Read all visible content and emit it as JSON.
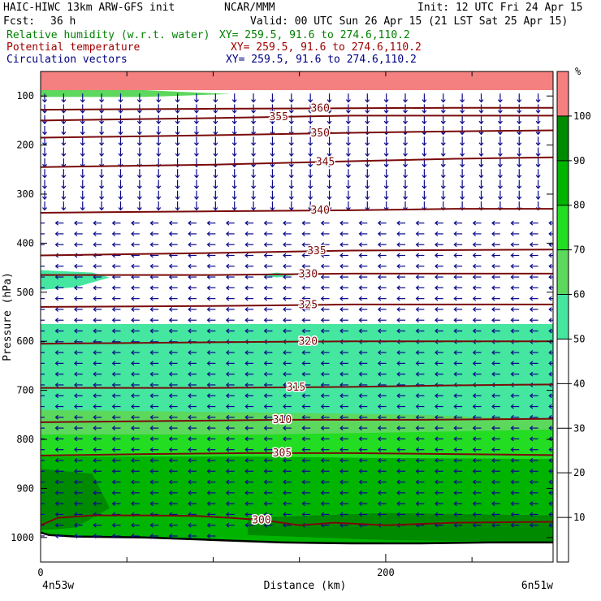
{
  "header": {
    "model": "HAIC-HIWC 13km ARW-GFS init",
    "org": "NCAR/MMM",
    "init": "Init: 12 UTC Fri 24 Apr 15",
    "fcst_label": "Fcst:",
    "fcst_value": "36 h",
    "valid": "Valid: 00 UTC Sun 26 Apr 15 (21 LST Sat 25 Apr 15)",
    "fields": [
      {
        "name": "Relative humidity (w.r.t. water)",
        "xy": "XY= 259.5, 91.6 to 274.6,110.2",
        "color": "#008000"
      },
      {
        "name": "Potential temperature",
        "xy": "XY= 259.5, 91.6 to 274.6,110.2",
        "color": "#a00000"
      },
      {
        "name": "Circulation vectors",
        "xy": "XY= 259.5, 91.6 to 274.6,110.2",
        "color": "#000080"
      }
    ]
  },
  "chart_data": {
    "type": "heatmap",
    "title": "",
    "xlabel": "Distance (km)",
    "ylabel": "Pressure (hPa)",
    "x_ticks": [
      0,
      200
    ],
    "x_range": [
      0,
      297
    ],
    "x_endpoints": {
      "left": "4n53w",
      "right": "6n51w"
    },
    "y_ticks": [
      100,
      200,
      300,
      400,
      500,
      600,
      700,
      800,
      900,
      1000
    ],
    "y_range": [
      50,
      1050
    ],
    "colorbar": {
      "unit": "%",
      "ticks": [
        10,
        20,
        30,
        40,
        50,
        60,
        70,
        80,
        90,
        100
      ],
      "bands": [
        {
          "from": 50,
          "to": 60,
          "color": "#44e6a0"
        },
        {
          "from": 60,
          "to": 70,
          "color": "#5cd85c"
        },
        {
          "from": 70,
          "to": 80,
          "color": "#22dd22"
        },
        {
          "from": 80,
          "to": 90,
          "color": "#00b400"
        },
        {
          "from": 90,
          "to": 100,
          "color": "#008a00"
        },
        {
          "from": 100,
          "to": 110,
          "color": "#f58080"
        }
      ]
    },
    "rh_regions": [
      {
        "level": 100,
        "x": [
          0,
          297,
          297,
          0
        ],
        "p": [
          50,
          50,
          88,
          88
        ]
      },
      {
        "level": 60,
        "x": [
          0,
          60,
          110,
          60,
          0
        ],
        "p": [
          88,
          88,
          96,
          102,
          102
        ]
      },
      {
        "level": 50,
        "x": [
          0,
          297,
          297,
          260,
          230,
          200,
          180,
          160,
          100,
          60,
          20,
          0
        ],
        "p": [
          565,
          565,
          1050,
          1050,
          1040,
          1035,
          1030,
          1028,
          1020,
          1015,
          1010,
          1010
        ]
      },
      {
        "level": 50,
        "x": [
          0,
          30,
          40,
          20,
          0
        ],
        "p": [
          455,
          460,
          470,
          490,
          495
        ]
      },
      {
        "level": 50,
        "x": [
          127,
          137,
          147,
          137,
          127
        ],
        "p": [
          465,
          460,
          465,
          470,
          465
        ]
      },
      {
        "level": 60,
        "x": [
          0,
          120,
          220,
          297,
          297,
          0
        ],
        "p": [
          740,
          745,
          750,
          760,
          1050,
          1050
        ]
      },
      {
        "level": 70,
        "x": [
          0,
          130,
          220,
          297,
          297,
          0
        ],
        "p": [
          790,
          790,
          785,
          780,
          1050,
          1050
        ]
      },
      {
        "level": 80,
        "x": [
          0,
          120,
          200,
          297,
          297,
          0
        ],
        "p": [
          835,
          835,
          838,
          840,
          1050,
          1050
        ]
      },
      {
        "level": 90,
        "x": [
          0,
          30,
          40,
          20,
          0
        ],
        "p": [
          860,
          870,
          940,
          980,
          985
        ]
      },
      {
        "level": 90,
        "x": [
          120,
          200,
          297,
          297,
          200,
          120
        ],
        "p": [
          960,
          950,
          955,
          1010,
          1005,
          995
        ]
      }
    ],
    "theta_contours": [
      {
        "label": 300,
        "x": [
          0,
          10,
          30,
          60,
          90,
          110,
          130,
          150,
          170,
          200,
          240,
          297
        ],
        "p": [
          975,
          960,
          955,
          955,
          956,
          960,
          965,
          975,
          970,
          975,
          970,
          968
        ]
      },
      {
        "label": 305,
        "x": [
          0,
          60,
          120,
          180,
          240,
          297
        ],
        "p": [
          833,
          830,
          828,
          828,
          830,
          832
        ]
      },
      {
        "label": 310,
        "x": [
          0,
          60,
          140,
          220,
          297
        ],
        "p": [
          765,
          763,
          760,
          760,
          758
        ]
      },
      {
        "label": 315,
        "x": [
          0,
          100,
          180,
          240,
          297
        ],
        "p": [
          695,
          695,
          693,
          690,
          688
        ]
      },
      {
        "label": 320,
        "x": [
          0,
          100,
          180,
          240,
          297
        ],
        "p": [
          605,
          602,
          600,
          600,
          600
        ]
      },
      {
        "label": 325,
        "x": [
          0,
          100,
          180,
          240,
          297
        ],
        "p": [
          530,
          528,
          525,
          525,
          525
        ]
      },
      {
        "label": 330,
        "x": [
          0,
          100,
          180,
          240,
          297
        ],
        "p": [
          465,
          465,
          462,
          462,
          462
        ]
      },
      {
        "label": 335,
        "x": [
          0,
          100,
          180,
          240,
          297
        ],
        "p": [
          425,
          420,
          415,
          414,
          413
        ]
      },
      {
        "label": 340,
        "x": [
          0,
          100,
          180,
          240,
          297
        ],
        "p": [
          338,
          335,
          333,
          330,
          330
        ]
      },
      {
        "label": 345,
        "x": [
          0,
          100,
          180,
          240,
          297
        ],
        "p": [
          245,
          240,
          233,
          228,
          225
        ]
      },
      {
        "label": 350,
        "x": [
          0,
          100,
          180,
          240,
          297
        ],
        "p": [
          185,
          180,
          175,
          172,
          170
        ]
      },
      {
        "label": 355,
        "x": [
          0,
          100,
          180,
          240,
          297
        ],
        "p": [
          150,
          145,
          140,
          140,
          140
        ]
      },
      {
        "label": 360,
        "x": [
          0,
          100,
          180,
          240,
          297
        ],
        "p": [
          128,
          126,
          125,
          124,
          124
        ]
      }
    ],
    "terrain": {
      "x": [
        0,
        5,
        20,
        60,
        100,
        140,
        180,
        220,
        260,
        297
      ],
      "p": [
        990,
        995,
        998,
        1000,
        1005,
        1010,
        1012,
        1012,
        1010,
        1010
      ]
    },
    "vectors": [
      {
        "p_from": 90,
        "p_to": 330,
        "direction": "down",
        "magnitude": 0.8
      },
      {
        "p_from": 340,
        "p_to": 1000,
        "direction": "left",
        "magnitude": 0.7
      }
    ]
  }
}
